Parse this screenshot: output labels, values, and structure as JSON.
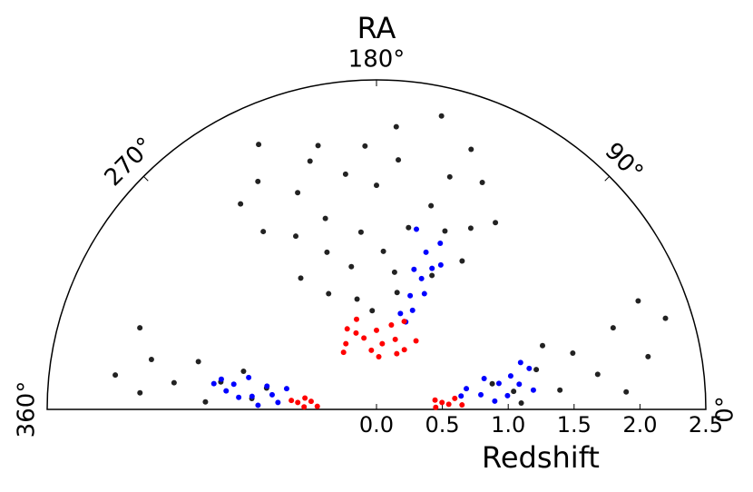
{
  "chart_data": {
    "type": "polar-scatter",
    "title": "RA",
    "ylabel": "Redshift",
    "xlim": [
      0,
      360
    ],
    "ylim": [
      0,
      2.5
    ],
    "xticks": [
      {
        "value": 0,
        "label": "0°"
      },
      {
        "value": 90,
        "label": "90°"
      },
      {
        "value": 180,
        "label": "180°"
      },
      {
        "value": 270,
        "label": "270°"
      },
      {
        "value": 360,
        "label": "360°"
      }
    ],
    "yticks": [
      {
        "value": 0,
        "label": "0.0"
      },
      0.5,
      {
        "value": 1,
        "label": "1.0"
      },
      1.5,
      {
        "value": 2,
        "label": "2.0"
      },
      2.5
    ],
    "series": [
      {
        "color": "#222222",
        "x": [
          115,
          247,
          155,
          130,
          140,
          150,
          160,
          170,
          175,
          180,
          185,
          190,
          195,
          200,
          205,
          210,
          215,
          220,
          225,
          230,
          235,
          240,
          245,
          120,
          125,
          135,
          145,
          165,
          200,
          185,
          160,
          228,
          172,
          210,
          138,
          322,
          330,
          335,
          340,
          345,
          350,
          355,
          328,
          345,
          352,
          338,
          8,
          12,
          18,
          22,
          28,
          32,
          38,
          42,
          5,
          15,
          25,
          45,
          35
        ],
        "values": [
          1.68,
          1.87,
          2.28,
          1.9,
          2.1,
          1.6,
          1.4,
          1.9,
          1.2,
          1.7,
          2.0,
          1.35,
          1.8,
          1.1,
          2.05,
          1.5,
          1.25,
          1.75,
          0.95,
          1.45,
          1.95,
          1.15,
          1.6,
          1.3,
          1.55,
          1.1,
          1.85,
          1.05,
          0.85,
          0.75,
          0.9,
          2.2,
          2.15,
          1.95,
          1.45,
          1.9,
          1.4,
          1.75,
          1.2,
          1.55,
          0.95,
          1.3,
          1.05,
          2.0,
          1.8,
          0.85,
          1.9,
          1.4,
          1.7,
          2.1,
          1.25,
          1.55,
          1.9,
          1.35,
          1.1,
          1.05,
          0.9,
          2.15,
          2.3
        ]
      },
      {
        "color": "#0000ff",
        "x": [
          132,
          135,
          138,
          140,
          142,
          145,
          147,
          150,
          152,
          155,
          143,
          137,
          8,
          12,
          16,
          20,
          24,
          28,
          32,
          36,
          14,
          26,
          18,
          30,
          332,
          336,
          340,
          344,
          348,
          352,
          356,
          338,
          346,
          334,
          342,
          350
        ],
        "values": [
          1.2,
          0.95,
          1.35,
          0.8,
          1.05,
          1.25,
          0.9,
          1.1,
          0.75,
          1.4,
          0.7,
          1.15,
          0.9,
          1.0,
          0.8,
          1.1,
          0.95,
          1.05,
          0.85,
          1.15,
          1.2,
          0.7,
          0.65,
          1.2,
          1.0,
          0.85,
          1.1,
          0.8,
          0.95,
          0.75,
          0.9,
          1.2,
          1.15,
          0.7,
          1.25,
          1.05
        ]
      },
      {
        "color": "#ff0000",
        "x": [
          120,
          130,
          140,
          150,
          160,
          170,
          180,
          190,
          200,
          210,
          220,
          230,
          240,
          175,
          205,
          145,
          4,
          8,
          12,
          16,
          6,
          18,
          342,
          346,
          350,
          354,
          348,
          356
        ],
        "values": [
          0.6,
          0.5,
          0.45,
          0.55,
          0.65,
          0.5,
          0.6,
          0.45,
          0.55,
          0.6,
          0.65,
          0.55,
          0.5,
          0.4,
          0.7,
          0.7,
          0.45,
          0.55,
          0.5,
          0.6,
          0.65,
          0.45,
          0.55,
          0.5,
          0.6,
          0.45,
          0.65,
          0.55
        ]
      }
    ]
  }
}
